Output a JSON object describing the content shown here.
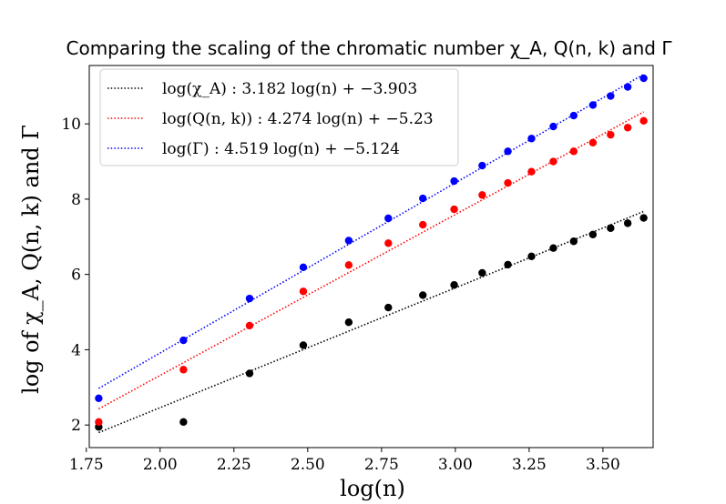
{
  "chart_data": {
    "type": "scatter",
    "title": "Comparing the scaling of the chromatic number χ_A, Q(n, k) and Γ",
    "xlabel": "log(n)",
    "ylabel": "log of χ_A, Q(n, k) and Γ",
    "xlim": [
      1.76,
      3.67
    ],
    "ylim": [
      1.4,
      11.55
    ],
    "xticks": [
      1.75,
      2.0,
      2.25,
      2.5,
      2.75,
      3.0,
      3.25,
      3.5
    ],
    "xtick_labels": [
      "1.75",
      "2.00",
      "2.25",
      "2.50",
      "2.75",
      "3.00",
      "3.25",
      "3.50"
    ],
    "yticks": [
      2,
      4,
      6,
      8,
      10
    ],
    "ytick_labels": [
      "2",
      "4",
      "6",
      "8",
      "10"
    ],
    "x": [
      1.792,
      2.079,
      2.303,
      2.485,
      2.639,
      2.773,
      2.89,
      2.996,
      3.091,
      3.178,
      3.258,
      3.332,
      3.401,
      3.466,
      3.526,
      3.584,
      3.638
    ],
    "series": [
      {
        "name": "chi_A",
        "color": "#000000",
        "values": [
          1.95,
          2.08,
          3.37,
          4.12,
          4.73,
          5.12,
          5.45,
          5.72,
          6.04,
          6.26,
          6.48,
          6.7,
          6.88,
          7.06,
          7.23,
          7.36,
          7.5
        ],
        "fit": {
          "slope": 3.182,
          "intercept": -3.903
        },
        "legend": "log(χ_A) : 3.182 log(n) + −3.903"
      },
      {
        "name": "Q(n,k)",
        "color": "#ff0000",
        "values": [
          2.08,
          3.47,
          4.64,
          5.55,
          6.25,
          6.83,
          7.32,
          7.73,
          8.11,
          8.43,
          8.73,
          9.0,
          9.27,
          9.5,
          9.71,
          9.9,
          10.08
        ],
        "fit": {
          "slope": 4.274,
          "intercept": -5.23
        },
        "legend": "log(Q(n, k)) : 4.274 log(n) + −5.23"
      },
      {
        "name": "Gamma",
        "color": "#0000ff",
        "values": [
          2.71,
          4.25,
          5.36,
          6.19,
          6.9,
          7.49,
          8.02,
          8.48,
          8.89,
          9.27,
          9.61,
          9.93,
          10.22,
          10.5,
          10.74,
          10.98,
          11.21
        ],
        "fit": {
          "slope": 4.519,
          "intercept": -5.124
        },
        "legend": "log(Γ) : 4.519 log(n) + −5.124"
      }
    ],
    "legend_position": "top-left"
  }
}
